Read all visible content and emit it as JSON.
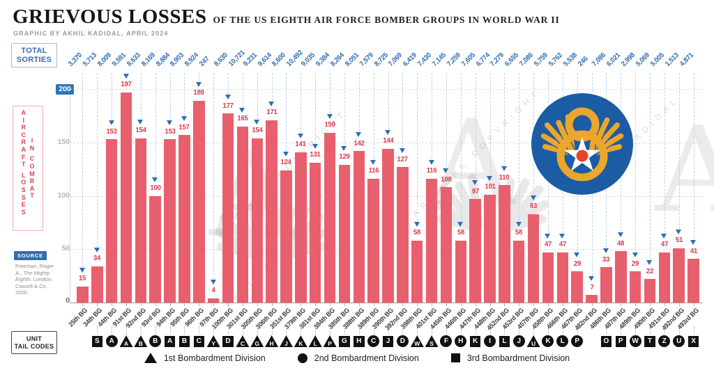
{
  "header": {
    "title": "GRIEVOUS LOSSES",
    "subtitle": "OF THE US EIGHTH AIR FORCE BOMBER GROUPS IN WORLD WAR II",
    "byline": "GRAPHIC BY AKHIL KADIDAL, APRIL 2024"
  },
  "axis": {
    "sorties_box_line1": "TOTAL",
    "sorties_box_line2": "SORTIES",
    "y_label": "AIRCRAFT LOSSES IN COMBAT",
    "y_label_columns": [
      "AIRCRAFT LOSSES",
      "IN COMBAT"
    ],
    "y_ticks": [
      0,
      50,
      100,
      150,
      200
    ],
    "tailcodes_box_line1": "UNIT",
    "tailcodes_box_line2": "TAIL CODES"
  },
  "source": {
    "label": "SOURCE",
    "pre": "Freeman, Roger A.,",
    "italic": "The Mighty Eighth.",
    "post": "London: Cassell & Co, 2000."
  },
  "legend": {
    "items": [
      {
        "shape": "triangle",
        "label": "1st Bombardment Division"
      },
      {
        "shape": "circle",
        "label": "2nd Bombardment Division"
      },
      {
        "shape": "square",
        "label": "3rd Bombardment Division"
      }
    ]
  },
  "watermark": {
    "monogram": "A",
    "lines": [
      "ARTWORK COPYRIGHT",
      "AKHIL KADIDAL"
    ]
  },
  "colors": {
    "bar": "#e85f6e",
    "value_label": "#d63b4f",
    "accent_blue": "#2e6db4",
    "leader": "#b7cfe9",
    "emblem_blue": "#1b5ca4",
    "emblem_gold": "#eca62b",
    "emblem_star_center": "#e8432e",
    "tail_symbol": "#111111"
  },
  "chart_data": {
    "type": "bar",
    "title": "Grievous Losses of the US Eighth Air Force Bomber Groups in World War II",
    "xlabel": "Bomb Group",
    "ylabel": "Aircraft losses in combat",
    "ylim": [
      0,
      200
    ],
    "grid": "dashed horizontal at 50/100/150/200",
    "legend_position": "bottom",
    "categories": [
      "25th BG",
      "34th BG",
      "44th BG",
      "91st BG",
      "92nd BG",
      "93rd BG",
      "94th BG",
      "95th BG",
      "96th BG",
      "97th BG",
      "100th BG",
      "301st BG",
      "305th BG",
      "306th BG",
      "351st BG",
      "379th BG",
      "381st BG",
      "384th BG",
      "385th BG",
      "388th BG",
      "389th BG",
      "390th BG",
      "392nd BG",
      "398th BG",
      "401st BG",
      "445th BG",
      "446th BG",
      "447th BG",
      "448th BG",
      "452nd BG",
      "453rd BG",
      "457th BG",
      "458th BG",
      "466th BG",
      "467th BG",
      "482nd BG",
      "486th BG",
      "487th BG",
      "489th BG",
      "490th BG",
      "491st BG",
      "492nd BG",
      "493rd BG"
    ],
    "series": [
      {
        "name": "Aircraft losses in combat",
        "values": [
          15,
          34,
          153,
          197,
          154,
          100,
          153,
          157,
          189,
          4,
          177,
          165,
          154,
          171,
          124,
          141,
          131,
          159,
          129,
          142,
          116,
          144,
          127,
          58,
          116,
          108,
          58,
          97,
          101,
          110,
          58,
          83,
          47,
          47,
          29,
          7,
          33,
          48,
          29,
          22,
          47,
          51,
          41
        ]
      },
      {
        "name": "Total sorties",
        "values_text": [
          "3,370",
          "5,713",
          "8,009",
          "9,591",
          "8,633",
          "8,169",
          "8,884",
          "8,903",
          "8,924",
          "247",
          "8,630",
          "10,721",
          "9,231",
          "9,614",
          "8,600",
          "10,492",
          "9,035",
          "9,384",
          "8,264",
          "8,051",
          "7,579",
          "8,725",
          "7,069",
          "6,419",
          "7,430",
          "7,145",
          "7,259",
          "7,605",
          "6,774",
          "7,279",
          "6,655",
          "7,086",
          "5,759",
          "5,762",
          "5,538",
          "246",
          "7,086",
          "6,021",
          "2,998",
          "5,069",
          "5,005",
          "1,513",
          "4,871"
        ]
      }
    ],
    "tail_codes": [
      null,
      {
        "shape": "square",
        "letter": "S"
      },
      {
        "shape": "circle",
        "letter": "A"
      },
      {
        "shape": "triangle",
        "letter": "A"
      },
      {
        "shape": "triangle",
        "letter": "B"
      },
      {
        "shape": "circle",
        "letter": "B"
      },
      {
        "shape": "square",
        "letter": "A"
      },
      {
        "shape": "square",
        "letter": "B"
      },
      {
        "shape": "square",
        "letter": "C"
      },
      {
        "shape": "triangle",
        "letter": "Y"
      },
      {
        "shape": "square",
        "letter": "D"
      },
      {
        "shape": "triangle",
        "letter": "C"
      },
      {
        "shape": "triangle",
        "letter": "G"
      },
      {
        "shape": "triangle",
        "letter": "H"
      },
      {
        "shape": "triangle",
        "letter": "J"
      },
      {
        "shape": "triangle",
        "letter": "K"
      },
      {
        "shape": "triangle",
        "letter": "L"
      },
      {
        "shape": "triangle",
        "letter": "P"
      },
      {
        "shape": "square",
        "letter": "G"
      },
      {
        "shape": "square",
        "letter": "H"
      },
      {
        "shape": "circle",
        "letter": "C"
      },
      {
        "shape": "square",
        "letter": "J"
      },
      {
        "shape": "circle",
        "letter": "D"
      },
      {
        "shape": "triangle",
        "letter": "W"
      },
      {
        "shape": "triangle",
        "letter": "S"
      },
      {
        "shape": "circle",
        "letter": "F"
      },
      {
        "shape": "circle",
        "letter": "H"
      },
      {
        "shape": "square",
        "letter": "K"
      },
      {
        "shape": "circle",
        "letter": "I"
      },
      {
        "shape": "square",
        "letter": "L"
      },
      {
        "shape": "circle",
        "letter": "J"
      },
      {
        "shape": "triangle",
        "letter": "U"
      },
      {
        "shape": "circle",
        "letter": "K"
      },
      {
        "shape": "circle",
        "letter": "L"
      },
      {
        "shape": "circle",
        "letter": "P"
      },
      null,
      {
        "shape": "square",
        "letter": "O"
      },
      {
        "shape": "square",
        "letter": "P"
      },
      {
        "shape": "circle",
        "letter": "W"
      },
      {
        "shape": "square",
        "letter": "T"
      },
      {
        "shape": "circle",
        "letter": "Z"
      },
      {
        "shape": "circle",
        "letter": "U"
      },
      {
        "shape": "square",
        "letter": "X"
      }
    ]
  }
}
